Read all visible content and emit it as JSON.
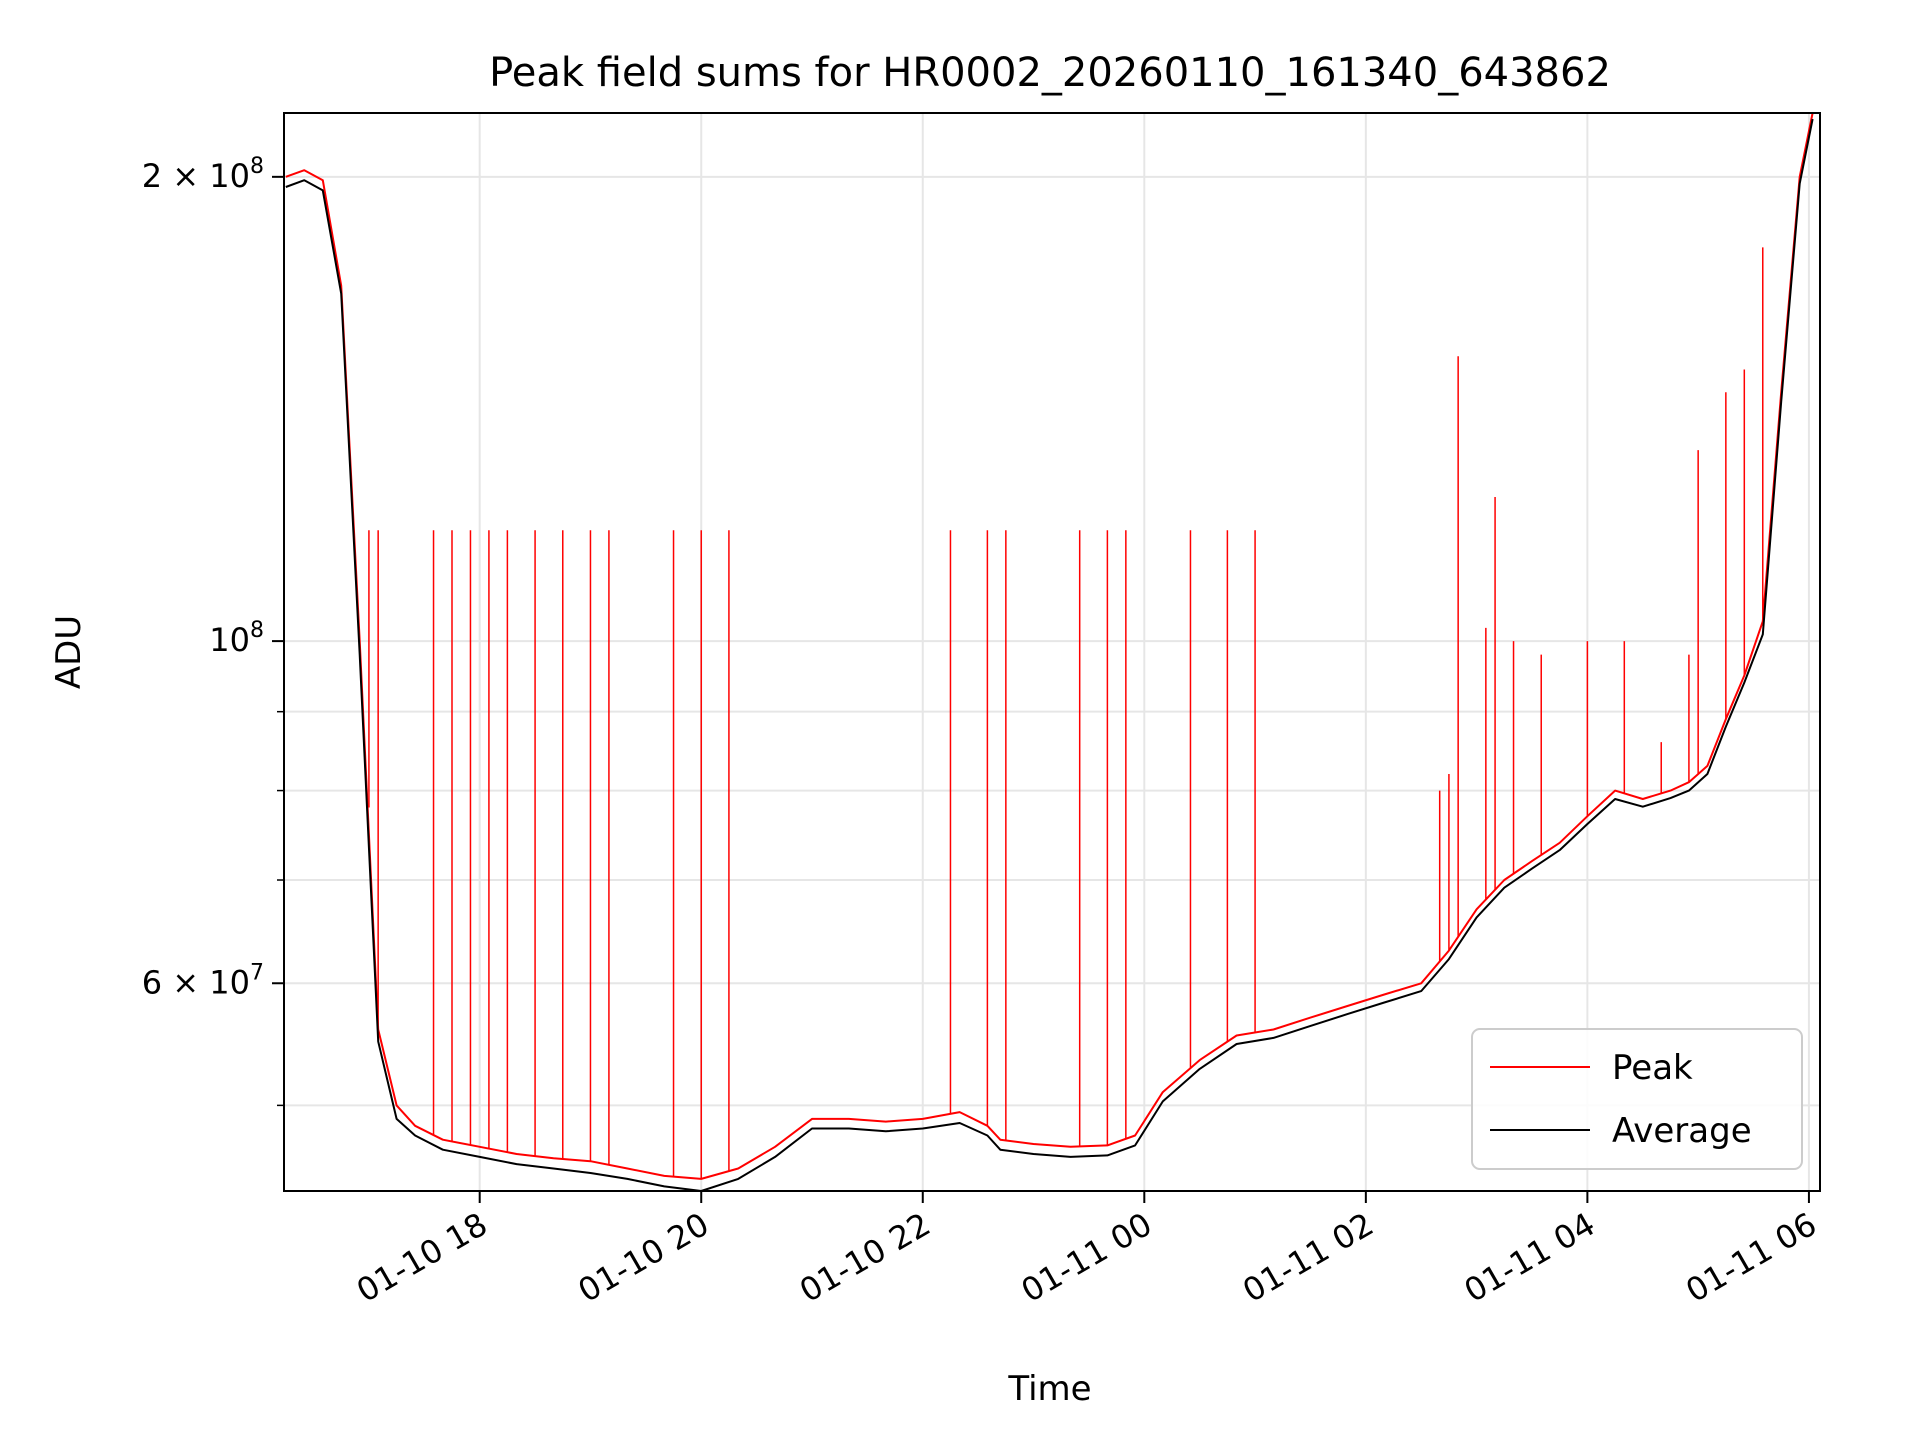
{
  "chart_data": {
    "type": "line",
    "title": "Peak field sums for HR0002_20260110_161340_643862",
    "xlabel": "Time",
    "ylabel": "ADU",
    "yscale": "log",
    "xlim": [
      "2026-01-10 16:14",
      "2026-01-11 06:06"
    ],
    "ylim": [
      44000000,
      220000000
    ],
    "grid": true,
    "legend_position": "lower right",
    "x_ticks": [
      "01-10 18",
      "01-10 20",
      "01-10 22",
      "01-11 00",
      "01-11 02",
      "01-11 04",
      "01-11 06"
    ],
    "y_major_ticks": [
      {
        "value": 60000000,
        "label": "6 × 10^7"
      },
      {
        "value": 100000000,
        "label": "10^8"
      },
      {
        "value": 200000000,
        "label": "2 × 10^8"
      }
    ],
    "x": [
      "2026-01-10 16:15",
      "2026-01-10 16:25",
      "2026-01-10 16:35",
      "2026-01-10 16:45",
      "2026-01-10 16:55",
      "2026-01-10 17:05",
      "2026-01-10 17:15",
      "2026-01-10 17:25",
      "2026-01-10 17:40",
      "2026-01-10 18:00",
      "2026-01-10 18:20",
      "2026-01-10 18:40",
      "2026-01-10 19:00",
      "2026-01-10 19:20",
      "2026-01-10 19:40",
      "2026-01-10 20:00",
      "2026-01-10 20:20",
      "2026-01-10 20:40",
      "2026-01-10 21:00",
      "2026-01-10 21:20",
      "2026-01-10 21:40",
      "2026-01-10 22:00",
      "2026-01-10 22:20",
      "2026-01-10 22:35",
      "2026-01-10 22:42",
      "2026-01-10 23:00",
      "2026-01-10 23:20",
      "2026-01-10 23:40",
      "2026-01-10 23:55",
      "2026-01-11 00:10",
      "2026-01-11 00:30",
      "2026-01-11 00:50",
      "2026-01-11 01:10",
      "2026-01-11 01:30",
      "2026-01-11 01:50",
      "2026-01-11 02:10",
      "2026-01-11 02:30",
      "2026-01-11 02:45",
      "2026-01-11 03:00",
      "2026-01-11 03:15",
      "2026-01-11 03:30",
      "2026-01-11 03:45",
      "2026-01-11 04:00",
      "2026-01-11 04:15",
      "2026-01-11 04:30",
      "2026-01-11 04:45",
      "2026-01-11 04:55",
      "2026-01-11 05:05",
      "2026-01-11 05:15",
      "2026-01-11 05:25",
      "2026-01-11 05:35",
      "2026-01-11 05:45",
      "2026-01-11 05:55",
      "2026-01-11 06:02"
    ],
    "series": [
      {
        "name": "Peak",
        "color": "#ff0000",
        "values": [
          200000000,
          202000000,
          199000000,
          170000000,
          100000000,
          56000000,
          50000000,
          48500000,
          47500000,
          47000000,
          46500000,
          46200000,
          46000000,
          45500000,
          45000000,
          44800000,
          45500000,
          47000000,
          49000000,
          49000000,
          48800000,
          49000000,
          49500000,
          48500000,
          47500000,
          47200000,
          47000000,
          47100000,
          47800000,
          51000000,
          53500000,
          55500000,
          56000000,
          57000000,
          58000000,
          59000000,
          60000000,
          63000000,
          67000000,
          70000000,
          72000000,
          74000000,
          77000000,
          80000000,
          79000000,
          80000000,
          81000000,
          83000000,
          89000000,
          95000000,
          103000000,
          145000000,
          200000000,
          220000000
        ],
        "spikes": [
          {
            "x": "2026-01-10 17:00",
            "y": 118000000
          },
          {
            "x": "2026-01-10 17:05",
            "y": 118000000
          },
          {
            "x": "2026-01-10 17:35",
            "y": 118000000
          },
          {
            "x": "2026-01-10 17:45",
            "y": 118000000
          },
          {
            "x": "2026-01-10 17:55",
            "y": 118000000
          },
          {
            "x": "2026-01-10 18:05",
            "y": 118000000
          },
          {
            "x": "2026-01-10 18:15",
            "y": 118000000
          },
          {
            "x": "2026-01-10 18:30",
            "y": 118000000
          },
          {
            "x": "2026-01-10 18:45",
            "y": 118000000
          },
          {
            "x": "2026-01-10 19:00",
            "y": 118000000
          },
          {
            "x": "2026-01-10 19:10",
            "y": 118000000
          },
          {
            "x": "2026-01-10 19:45",
            "y": 118000000
          },
          {
            "x": "2026-01-10 20:00",
            "y": 118000000
          },
          {
            "x": "2026-01-10 20:15",
            "y": 118000000
          },
          {
            "x": "2026-01-10 22:15",
            "y": 118000000
          },
          {
            "x": "2026-01-10 22:35",
            "y": 118000000
          },
          {
            "x": "2026-01-10 22:45",
            "y": 118000000
          },
          {
            "x": "2026-01-10 23:25",
            "y": 118000000
          },
          {
            "x": "2026-01-10 23:40",
            "y": 118000000
          },
          {
            "x": "2026-01-10 23:50",
            "y": 118000000
          },
          {
            "x": "2026-01-11 00:25",
            "y": 118000000
          },
          {
            "x": "2026-01-11 00:45",
            "y": 118000000
          },
          {
            "x": "2026-01-11 01:00",
            "y": 118000000
          },
          {
            "x": "2026-01-11 02:40",
            "y": 80000000
          },
          {
            "x": "2026-01-11 02:45",
            "y": 82000000
          },
          {
            "x": "2026-01-11 02:50",
            "y": 153000000
          },
          {
            "x": "2026-01-11 03:05",
            "y": 102000000
          },
          {
            "x": "2026-01-11 03:10",
            "y": 124000000
          },
          {
            "x": "2026-01-11 03:20",
            "y": 100000000
          },
          {
            "x": "2026-01-11 03:35",
            "y": 98000000
          },
          {
            "x": "2026-01-11 04:00",
            "y": 100000000
          },
          {
            "x": "2026-01-11 04:20",
            "y": 100000000
          },
          {
            "x": "2026-01-11 04:40",
            "y": 86000000
          },
          {
            "x": "2026-01-11 04:55",
            "y": 98000000
          },
          {
            "x": "2026-01-11 05:00",
            "y": 133000000
          },
          {
            "x": "2026-01-11 05:15",
            "y": 145000000
          },
          {
            "x": "2026-01-11 05:25",
            "y": 150000000
          },
          {
            "x": "2026-01-11 05:35",
            "y": 180000000
          }
        ]
      },
      {
        "name": "Average",
        "color": "#000000",
        "values": [
          197000000,
          199000000,
          196000000,
          168000000,
          98000000,
          55000000,
          49000000,
          47800000,
          46800000,
          46300000,
          45800000,
          45500000,
          45200000,
          44800000,
          44300000,
          44000000,
          44800000,
          46300000,
          48300000,
          48300000,
          48100000,
          48300000,
          48700000,
          47800000,
          46800000,
          46500000,
          46300000,
          46400000,
          47100000,
          50300000,
          52800000,
          54800000,
          55300000,
          56300000,
          57300000,
          58300000,
          59300000,
          62200000,
          66200000,
          69200000,
          71200000,
          73200000,
          76100000,
          79000000,
          78100000,
          79100000,
          80000000,
          82000000,
          88000000,
          94000000,
          101000000,
          143000000,
          198000000,
          218000000
        ]
      }
    ]
  }
}
